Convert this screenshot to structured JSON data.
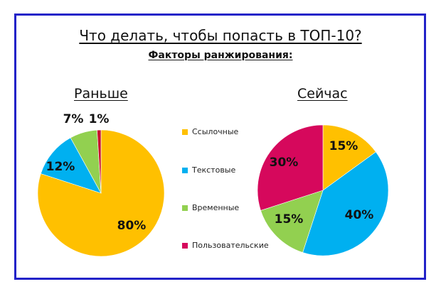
{
  "title": "Что делать, чтобы попасть в ТОП-10?",
  "subtitle": "Факторы ранжирования:",
  "legend": [
    {
      "label": "Ссылочные",
      "color": "#FFC000"
    },
    {
      "label": "Текстовые",
      "color": "#00B0F0"
    },
    {
      "label": "Временные",
      "color": "#92D050"
    },
    {
      "label": "Пользовательские",
      "color": "#D6085C"
    }
  ],
  "chart_data": [
    {
      "type": "pie",
      "title": "Раньше",
      "categories": [
        "Ссылочные",
        "Текстовые",
        "Временные",
        "Пользовательские"
      ],
      "values": [
        80,
        12,
        7,
        1
      ],
      "labels": [
        "80%",
        "12%",
        "7%",
        "1%"
      ],
      "colors": [
        "#FFC000",
        "#00B0F0",
        "#92D050",
        "#C8102E"
      ]
    },
    {
      "type": "pie",
      "title": "Сейчас",
      "categories": [
        "Ссылочные",
        "Текстовые",
        "Временные",
        "Пользовательские"
      ],
      "values": [
        15,
        40,
        15,
        30
      ],
      "labels": [
        "15%",
        "40%",
        "15%",
        "30%"
      ],
      "colors": [
        "#FFC000",
        "#00B0F0",
        "#92D050",
        "#D6085C"
      ]
    }
  ]
}
